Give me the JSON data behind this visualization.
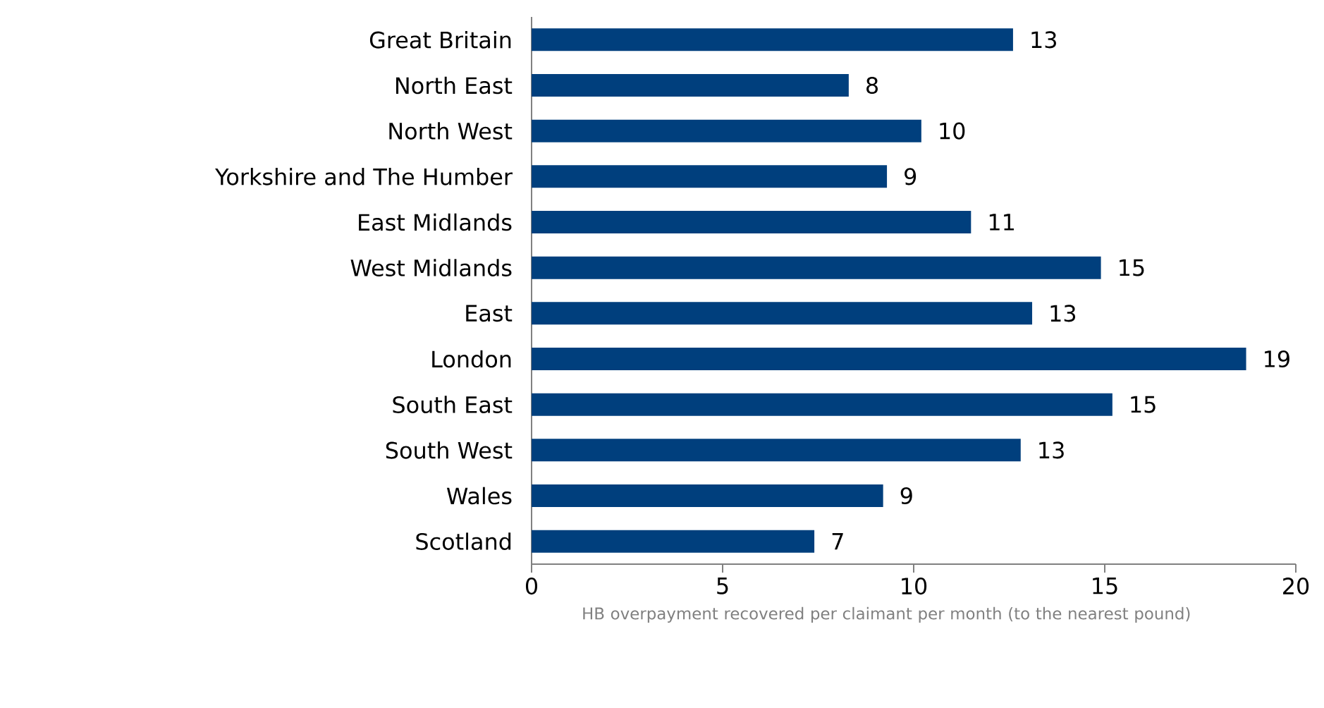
{
  "chart_data": {
    "type": "bar",
    "orientation": "horizontal",
    "categories": [
      "Great Britain",
      "North East",
      "North West",
      "Yorkshire and The Humber",
      "East Midlands",
      "West Midlands",
      "East",
      "London",
      "South East",
      "South West",
      "Wales",
      "Scotland"
    ],
    "values": [
      12.6,
      8.3,
      10.2,
      9.3,
      11.5,
      14.9,
      13.1,
      18.7,
      15.2,
      12.8,
      9.2,
      7.4
    ],
    "value_labels": [
      "13",
      "8",
      "10",
      "9",
      "11",
      "15",
      "13",
      "19",
      "15",
      "13",
      "9",
      "7"
    ],
    "color": "#003f7d",
    "xlim": [
      0,
      20
    ],
    "xticks": [
      0,
      5,
      10,
      15,
      20
    ],
    "xlabel": "HB overpayment recovered per claimant per month (to the nearest pound)"
  }
}
